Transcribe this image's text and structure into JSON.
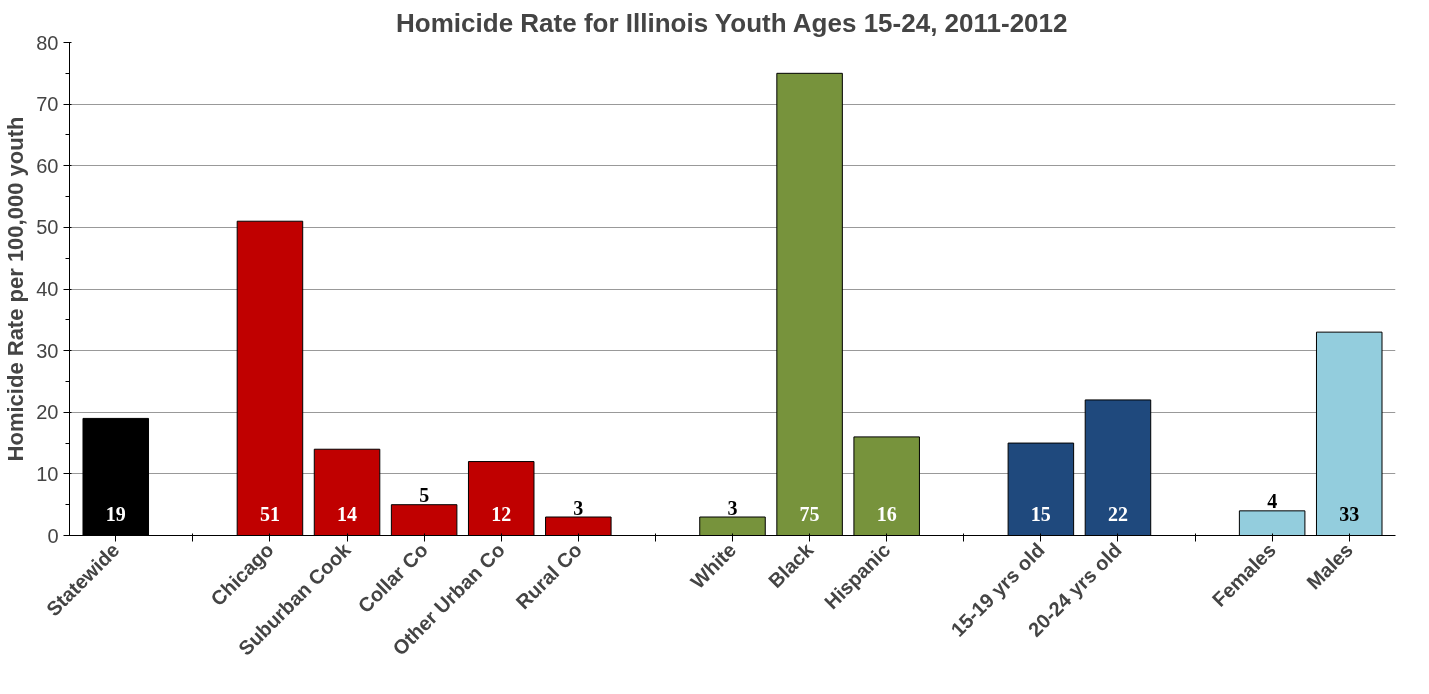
{
  "chart_data": {
    "type": "bar",
    "title": "Homicide Rate for Illinois Youth Ages 15-24, 2011-2012",
    "ylabel": "Homicide Rate per 100,000 youth",
    "categories": [
      "Statewide",
      null,
      "Chicago",
      "Suburban Cook",
      "Collar Co",
      "Other Urban Co",
      "Rural Co",
      null,
      "White",
      "Black",
      "Hispanic",
      null,
      "15-19 yrs old",
      "20-24 yrs old",
      null,
      "Females",
      "Males"
    ],
    "values": [
      19,
      null,
      51,
      14,
      5,
      12,
      3,
      null,
      3,
      75,
      16,
      null,
      15,
      22,
      null,
      4,
      33
    ],
    "colors": [
      "#000000",
      null,
      "#c00000",
      "#c00000",
      "#c00000",
      "#c00000",
      "#c00000",
      null,
      "#77933c",
      "#77933c",
      "#77933c",
      null,
      "#1f497d",
      "#1f497d",
      null,
      "#93cddd",
      "#93cddd"
    ],
    "ylim": [
      0,
      80
    ],
    "yticks": [
      0,
      10,
      20,
      30,
      40,
      50,
      60,
      70,
      80
    ],
    "grid": "y",
    "data_labels": true
  }
}
